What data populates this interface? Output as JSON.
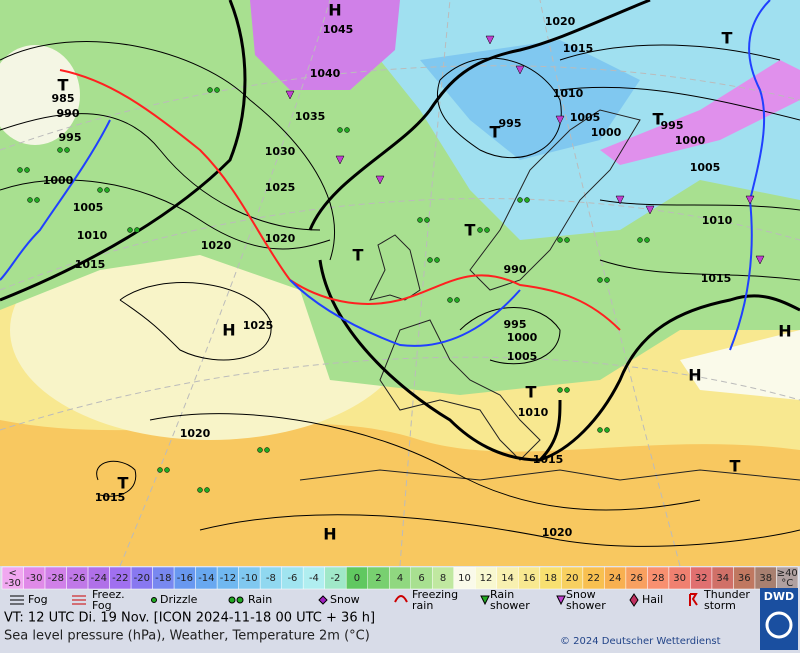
{
  "map": {
    "labels": [
      "H",
      "1045",
      "1040",
      "1035",
      "1030",
      "1025",
      "1020",
      "1020",
      "1015",
      "1010",
      "1005",
      "1000",
      "995",
      "990",
      "985",
      "T",
      "1025",
      "H",
      "1020",
      "T",
      "1015",
      "H",
      "1020",
      "1015",
      "1010",
      "1005",
      "1000",
      "995",
      "990",
      "T",
      "T",
      "T",
      "995",
      "1010",
      "1005",
      "1000",
      "T",
      "995",
      "1000",
      "1005",
      "1010",
      "1015",
      "1015",
      "1020",
      "T",
      "H",
      "T",
      "H",
      "T"
    ]
  },
  "scale": {
    "low_label": [
      "<",
      "-30"
    ],
    "values": [
      -30,
      -28,
      -26,
      -24,
      -22,
      -20,
      -18,
      -16,
      -14,
      -12,
      -10,
      -8,
      -6,
      -4,
      -2,
      0,
      2,
      4,
      6,
      8,
      10,
      12,
      14,
      16,
      18,
      20,
      22,
      24,
      26,
      28,
      30,
      32,
      34,
      36,
      38
    ],
    "high_label": [
      "≥40",
      "°C"
    ],
    "colors": [
      "#f0a8f0",
      "#e08ae8",
      "#d080e8",
      "#c078e8",
      "#b070e8",
      "#a070f0",
      "#8878f0",
      "#7888f0",
      "#6898f0",
      "#68a8f0",
      "#70b8f0",
      "#80c8f0",
      "#90d8f0",
      "#a0e4f0",
      "#b0eef0",
      "#a0e8c8",
      "#60c860",
      "#78d070",
      "#90d880",
      "#a8e090",
      "#c0e8a0",
      "#fafaea",
      "#f8f8d0",
      "#f8f0b0",
      "#f8e890",
      "#f8e070",
      "#f8d060",
      "#f8c050",
      "#f8b050",
      "#f8a060",
      "#f89070",
      "#f08070",
      "#e07070",
      "#d07068",
      "#c07860",
      "#a88070",
      "#b0a0a0"
    ]
  },
  "legend": {
    "items": [
      [
        "Fog"
      ],
      [
        "Freez.",
        "Fog"
      ],
      [
        "Drizzle"
      ],
      [
        "Rain"
      ],
      [
        "Snow"
      ],
      [
        "Freezing",
        "rain"
      ],
      [
        "Rain",
        "shower"
      ],
      [
        "Snow",
        "shower"
      ],
      [
        "Hail"
      ],
      [
        "Thunder",
        "storm"
      ]
    ]
  },
  "footer": {
    "valid_time": "VT: 12 UTC Di.  19 Nov. [ICON 2024-11-18  00 UTC + 36 h]",
    "description": "Sea level pressure (hPa), Weather, Temperature 2m (°C)",
    "copyright": "© 2024 Deutscher Wetterdienst",
    "logo": "DWD"
  }
}
